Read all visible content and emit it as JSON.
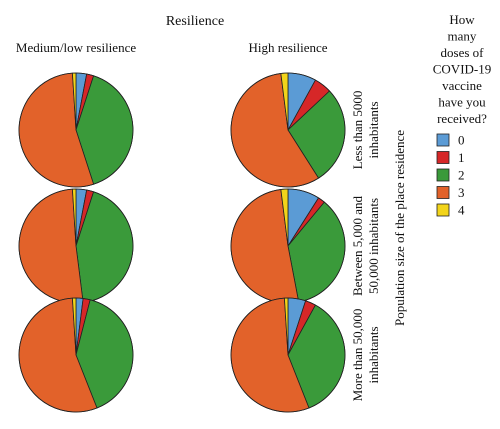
{
  "title": "Resilience",
  "columns": [
    "Medium/low resilience",
    "High resilience"
  ],
  "rows": [
    [
      "Less than 5000",
      "inhabitants"
    ],
    [
      "Between 5,000 and",
      "50,000 inhabitants"
    ],
    [
      "More than 50,000",
      "inhabitants"
    ]
  ],
  "row_axis_label": "Population size of the place residence",
  "legend": {
    "title_lines": [
      "How",
      "many",
      "doses of",
      "COVID-19",
      "vaccine",
      "have you",
      "received?"
    ],
    "items": [
      {
        "label": "0",
        "color": "#5b9bd5"
      },
      {
        "label": "1",
        "color": "#d62728"
      },
      {
        "label": "2",
        "color": "#3a9a3a"
      },
      {
        "label": "3",
        "color": "#e2622a"
      },
      {
        "label": "4",
        "color": "#f2d41a"
      }
    ]
  },
  "chart_data": {
    "type": "pie",
    "title": "Resilience",
    "facet_columns": [
      "Medium/low resilience",
      "High resilience"
    ],
    "facet_rows": [
      "Less than 5000 inhabitants",
      "Between 5,000 and 50,000 inhabitants",
      "More than 50,000 inhabitants"
    ],
    "legend_title": "How many doses of COVID-19 vaccine have you received?",
    "categories": [
      "0",
      "1",
      "2",
      "3",
      "4"
    ],
    "panels": [
      {
        "row": 0,
        "col": 0,
        "values": [
          3,
          2,
          40,
          54,
          1
        ]
      },
      {
        "row": 0,
        "col": 1,
        "values": [
          8,
          5,
          28,
          57,
          2
        ]
      },
      {
        "row": 1,
        "col": 0,
        "values": [
          3,
          2,
          43,
          51,
          1
        ]
      },
      {
        "row": 1,
        "col": 1,
        "values": [
          9,
          2,
          36,
          51,
          2
        ]
      },
      {
        "row": 2,
        "col": 0,
        "values": [
          2,
          2,
          40,
          55,
          1
        ]
      },
      {
        "row": 2,
        "col": 1,
        "values": [
          5,
          3,
          36,
          55,
          1
        ]
      }
    ],
    "legend_position": "right"
  }
}
